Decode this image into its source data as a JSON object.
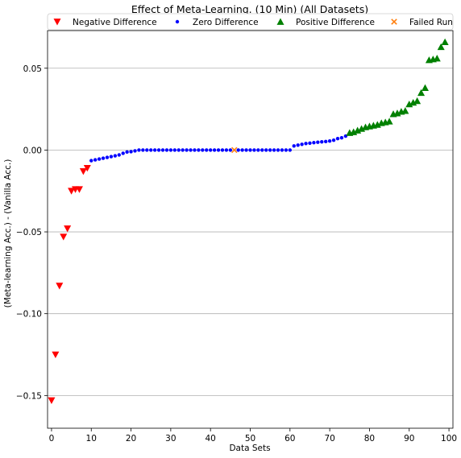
{
  "chart_data": {
    "type": "scatter",
    "title": "Effect of Meta-Learning. (10 Min) (All Datasets)",
    "xlabel": "Data Sets",
    "ylabel": "(Meta-learning Acc.) - (Vanilla Acc.)",
    "xlim": [
      -1,
      101
    ],
    "ylim": [
      -0.17,
      0.073
    ],
    "xticks": [
      0,
      10,
      20,
      30,
      40,
      50,
      60,
      70,
      80,
      90,
      100
    ],
    "xtick_labels": [
      "0",
      "10",
      "20",
      "30",
      "40",
      "50",
      "60",
      "70",
      "80",
      "90",
      "100"
    ],
    "yticks": [
      -0.15,
      -0.1,
      -0.05,
      0.0,
      0.05
    ],
    "ytick_labels": [
      "−0.15",
      "−0.10",
      "−0.05",
      "0.00",
      "0.05"
    ],
    "grid": "horizontal",
    "legend_position": "top",
    "series": [
      {
        "name": "Negative Difference",
        "marker": "triangle-down",
        "color": "#ff0000",
        "x": [
          0,
          1,
          2,
          3,
          4,
          5,
          6,
          7,
          8,
          9
        ],
        "y": [
          -0.153,
          -0.125,
          -0.083,
          -0.053,
          -0.048,
          -0.025,
          -0.024,
          -0.024,
          -0.013,
          -0.011
        ]
      },
      {
        "name": "Zero Difference",
        "marker": "circle",
        "color": "#0000ff",
        "x": [
          10,
          11,
          12,
          13,
          14,
          15,
          16,
          17,
          18,
          19,
          20,
          21,
          22,
          23,
          24,
          25,
          26,
          27,
          28,
          29,
          30,
          31,
          32,
          33,
          34,
          35,
          36,
          37,
          38,
          39,
          40,
          41,
          42,
          43,
          44,
          45,
          47,
          48,
          49,
          50,
          51,
          52,
          53,
          54,
          55,
          56,
          57,
          58,
          59,
          60,
          61,
          62,
          63,
          64,
          65,
          66,
          67,
          68,
          69,
          70,
          71,
          72,
          73,
          74
        ],
        "y": [
          -0.0065,
          -0.006,
          -0.0055,
          -0.005,
          -0.0045,
          -0.004,
          -0.0035,
          -0.003,
          -0.002,
          -0.0012,
          -0.001,
          -0.0005,
          0,
          0,
          0,
          0,
          0,
          0,
          0,
          0,
          0,
          0,
          0,
          0,
          0,
          0,
          0,
          0,
          0,
          0,
          0,
          0,
          0,
          0,
          0,
          0,
          0,
          0,
          0,
          0,
          0,
          0,
          0,
          0,
          0,
          0,
          0,
          0,
          0,
          0,
          0.0025,
          0.003,
          0.0035,
          0.004,
          0.0042,
          0.0045,
          0.0048,
          0.005,
          0.0052,
          0.0055,
          0.006,
          0.007,
          0.0075,
          0.0085
        ]
      },
      {
        "name": "Positive Difference",
        "marker": "triangle-up",
        "color": "#008000",
        "x": [
          75,
          76,
          77,
          78,
          79,
          80,
          81,
          82,
          83,
          84,
          85,
          86,
          87,
          88,
          89,
          90,
          91,
          92,
          93,
          94,
          95,
          96,
          97,
          98,
          99
        ],
        "y": [
          0.0105,
          0.011,
          0.012,
          0.013,
          0.014,
          0.0145,
          0.015,
          0.0155,
          0.0165,
          0.017,
          0.0175,
          0.022,
          0.0225,
          0.0235,
          0.024,
          0.028,
          0.029,
          0.03,
          0.035,
          0.038,
          0.055,
          0.0555,
          0.056,
          0.063,
          0.066
        ]
      },
      {
        "name": "Failed Run",
        "marker": "x",
        "color": "#ff7f0e",
        "x": [
          46
        ],
        "y": [
          0
        ]
      }
    ]
  }
}
